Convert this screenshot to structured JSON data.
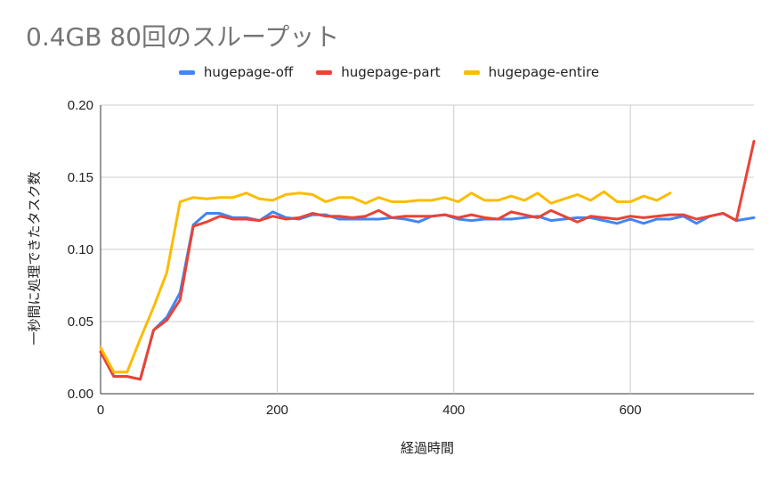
{
  "chart_data": {
    "type": "line",
    "title": "0.4GB 80回のスループット",
    "xlabel": "経過時間",
    "ylabel": "一秒間に処理できたタスク数",
    "xlim": [
      0,
      740
    ],
    "ylim": [
      0,
      0.2
    ],
    "xticks": [
      "0",
      "200",
      "400",
      "600"
    ],
    "xtick_values": [
      0,
      200,
      400,
      600
    ],
    "yticks": [
      "0.00",
      "0.05",
      "0.10",
      "0.15",
      "0.20"
    ],
    "ytick_values": [
      0,
      0.05,
      0.1,
      0.15,
      0.2
    ],
    "grid": true,
    "legend_position": "top",
    "series": [
      {
        "name": "hugepage-off",
        "color": "#4285f4",
        "x": [
          0,
          15,
          30,
          45,
          60,
          75,
          90,
          105,
          120,
          135,
          150,
          165,
          180,
          195,
          210,
          225,
          240,
          255,
          270,
          285,
          300,
          315,
          330,
          345,
          360,
          375,
          390,
          405,
          420,
          435,
          450,
          465,
          480,
          495,
          510,
          525,
          540,
          555,
          570,
          585,
          600,
          615,
          630,
          645,
          660,
          675,
          690,
          705,
          720,
          740
        ],
        "y": [
          0.029,
          0.012,
          0.012,
          0.01,
          0.044,
          0.053,
          0.07,
          0.117,
          0.125,
          0.125,
          0.122,
          0.122,
          0.12,
          0.126,
          0.122,
          0.121,
          0.124,
          0.124,
          0.121,
          0.121,
          0.121,
          0.121,
          0.122,
          0.121,
          0.119,
          0.123,
          0.124,
          0.121,
          0.12,
          0.121,
          0.121,
          0.121,
          0.122,
          0.123,
          0.12,
          0.121,
          0.122,
          0.122,
          0.12,
          0.118,
          0.121,
          0.118,
          0.121,
          0.121,
          0.123,
          0.118,
          0.123,
          0.125,
          0.12,
          0.122
        ]
      },
      {
        "name": "hugepage-part",
        "color": "#ea4335",
        "x": [
          0,
          15,
          30,
          45,
          60,
          75,
          90,
          105,
          120,
          135,
          150,
          165,
          180,
          195,
          210,
          225,
          240,
          255,
          270,
          285,
          300,
          315,
          330,
          345,
          360,
          375,
          390,
          405,
          420,
          435,
          450,
          465,
          480,
          495,
          510,
          525,
          540,
          555,
          570,
          585,
          600,
          615,
          630,
          645,
          660,
          675,
          690,
          705,
          720,
          740
        ],
        "y": [
          0.029,
          0.012,
          0.012,
          0.01,
          0.044,
          0.051,
          0.065,
          0.116,
          0.119,
          0.123,
          0.121,
          0.121,
          0.12,
          0.123,
          0.121,
          0.122,
          0.125,
          0.123,
          0.123,
          0.122,
          0.123,
          0.127,
          0.122,
          0.123,
          0.123,
          0.123,
          0.124,
          0.122,
          0.124,
          0.122,
          0.121,
          0.126,
          0.124,
          0.122,
          0.127,
          0.123,
          0.119,
          0.123,
          0.122,
          0.121,
          0.123,
          0.122,
          0.123,
          0.124,
          0.124,
          0.121,
          0.123,
          0.125,
          0.12,
          0.175
        ]
      },
      {
        "name": "hugepage-entire",
        "color": "#fbbc04",
        "x": [
          0,
          15,
          30,
          45,
          60,
          75,
          90,
          105,
          120,
          135,
          150,
          165,
          180,
          195,
          210,
          225,
          240,
          255,
          270,
          285,
          300,
          315,
          330,
          345,
          360,
          375,
          390,
          405,
          420,
          435,
          450,
          465,
          480,
          495,
          510,
          525,
          540,
          555,
          570,
          585,
          600,
          615,
          630,
          645
        ],
        "y": [
          0.032,
          0.015,
          0.015,
          0.038,
          0.06,
          0.084,
          0.133,
          0.136,
          0.135,
          0.136,
          0.136,
          0.139,
          0.135,
          0.134,
          0.138,
          0.139,
          0.138,
          0.133,
          0.136,
          0.136,
          0.132,
          0.136,
          0.133,
          0.133,
          0.134,
          0.134,
          0.136,
          0.133,
          0.139,
          0.134,
          0.134,
          0.137,
          0.134,
          0.139,
          0.132,
          0.135,
          0.138,
          0.134,
          0.14,
          0.133,
          0.133,
          0.137,
          0.134,
          0.139
        ]
      }
    ]
  }
}
